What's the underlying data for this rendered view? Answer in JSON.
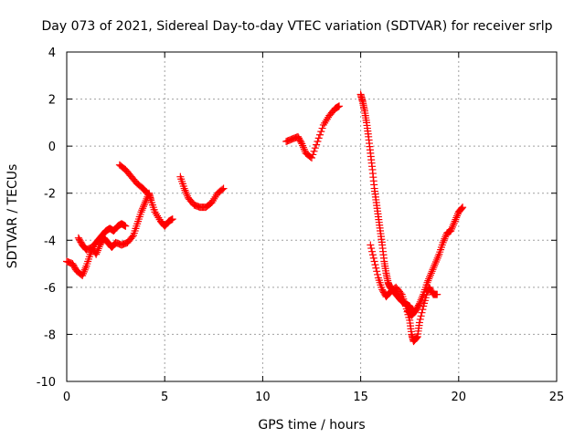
{
  "chart_data": {
    "type": "scatter",
    "title": "Day 073 of 2021, Sidereal Day-to-day VTEC variation (SDTVAR) for receiver srlp",
    "xlabel": "GPS time / hours",
    "ylabel": "SDTVAR / TECUs",
    "xlim": [
      0,
      25
    ],
    "ylim": [
      -10,
      4
    ],
    "xticks": [
      "0",
      "5",
      "10",
      "15",
      "20",
      "25"
    ],
    "yticks": [
      "-10",
      "-8",
      "-6",
      "-4",
      "-2",
      "0",
      "2",
      "4"
    ],
    "grid": true,
    "marker": "plus",
    "color": "#ff0000",
    "series": [
      {
        "points": [
          [
            0.0,
            -4.9
          ],
          [
            0.3,
            -5.0
          ],
          [
            0.5,
            -5.3
          ],
          [
            0.8,
            -5.5
          ],
          [
            1.0,
            -5.1
          ],
          [
            1.2,
            -4.6
          ],
          [
            1.4,
            -4.2
          ],
          [
            1.6,
            -4.0
          ],
          [
            1.8,
            -3.8
          ],
          [
            2.0,
            -3.6
          ],
          [
            2.2,
            -3.5
          ],
          [
            2.4,
            -3.6
          ],
          [
            2.6,
            -3.4
          ],
          [
            2.8,
            -3.3
          ],
          [
            3.0,
            -3.4
          ]
        ]
      },
      {
        "points": [
          [
            0.6,
            -3.9
          ],
          [
            0.8,
            -4.2
          ],
          [
            1.0,
            -4.4
          ],
          [
            1.3,
            -4.3
          ],
          [
            1.5,
            -4.6
          ],
          [
            1.7,
            -4.2
          ],
          [
            1.9,
            -3.9
          ],
          [
            2.1,
            -4.1
          ],
          [
            2.3,
            -4.3
          ],
          [
            2.5,
            -4.1
          ],
          [
            2.8,
            -4.2
          ],
          [
            3.1,
            -4.1
          ],
          [
            3.4,
            -3.8
          ],
          [
            3.6,
            -3.3
          ],
          [
            3.8,
            -2.8
          ],
          [
            4.0,
            -2.4
          ],
          [
            4.2,
            -2.0
          ],
          [
            4.3,
            -2.3
          ],
          [
            4.5,
            -2.8
          ],
          [
            4.8,
            -3.2
          ],
          [
            5.0,
            -3.4
          ],
          [
            5.2,
            -3.2
          ],
          [
            5.4,
            -3.1
          ]
        ]
      },
      {
        "points": [
          [
            2.7,
            -0.8
          ],
          [
            3.0,
            -1.0
          ],
          [
            3.3,
            -1.3
          ],
          [
            3.6,
            -1.6
          ],
          [
            3.9,
            -1.8
          ],
          [
            4.1,
            -2.0
          ]
        ]
      },
      {
        "points": [
          [
            5.8,
            -1.3
          ],
          [
            6.0,
            -1.8
          ],
          [
            6.2,
            -2.2
          ],
          [
            6.5,
            -2.5
          ],
          [
            6.8,
            -2.6
          ],
          [
            7.1,
            -2.6
          ],
          [
            7.4,
            -2.4
          ],
          [
            7.7,
            -2.0
          ],
          [
            8.0,
            -1.8
          ]
        ]
      },
      {
        "points": [
          [
            11.2,
            0.2
          ],
          [
            11.5,
            0.3
          ],
          [
            11.8,
            0.4
          ],
          [
            12.0,
            0.1
          ],
          [
            12.2,
            -0.3
          ],
          [
            12.5,
            -0.5
          ],
          [
            12.8,
            0.2
          ],
          [
            13.1,
            0.9
          ],
          [
            13.4,
            1.3
          ],
          [
            13.7,
            1.6
          ],
          [
            13.9,
            1.7
          ]
        ]
      },
      {
        "points": [
          [
            15.0,
            2.2
          ],
          [
            15.1,
            1.9
          ],
          [
            15.2,
            1.5
          ],
          [
            15.3,
            1.0
          ],
          [
            15.4,
            0.4
          ],
          [
            15.5,
            -0.3
          ],
          [
            15.6,
            -1.0
          ],
          [
            15.7,
            -1.8
          ],
          [
            15.8,
            -2.4
          ],
          [
            15.9,
            -3.0
          ],
          [
            16.0,
            -3.6
          ],
          [
            16.1,
            -4.2
          ],
          [
            16.2,
            -4.9
          ],
          [
            16.3,
            -5.4
          ],
          [
            16.4,
            -5.8
          ],
          [
            16.5,
            -6.0
          ],
          [
            16.7,
            -6.2
          ],
          [
            16.9,
            -6.4
          ],
          [
            17.1,
            -6.6
          ],
          [
            17.3,
            -6.7
          ],
          [
            17.5,
            -6.8
          ],
          [
            17.6,
            -7.0
          ]
        ]
      },
      {
        "points": [
          [
            15.5,
            -4.2
          ],
          [
            15.7,
            -4.9
          ],
          [
            15.9,
            -5.6
          ],
          [
            16.1,
            -6.1
          ],
          [
            16.3,
            -6.4
          ],
          [
            16.5,
            -6.2
          ],
          [
            16.8,
            -6.0
          ],
          [
            17.1,
            -6.3
          ],
          [
            17.3,
            -6.8
          ],
          [
            17.5,
            -7.4
          ],
          [
            17.6,
            -8.0
          ],
          [
            17.7,
            -8.3
          ],
          [
            17.9,
            -8.1
          ],
          [
            18.0,
            -7.5
          ],
          [
            18.2,
            -6.8
          ],
          [
            18.4,
            -6.2
          ],
          [
            18.5,
            -6.0
          ],
          [
            18.7,
            -6.3
          ],
          [
            18.9,
            -6.3
          ]
        ]
      },
      {
        "points": [
          [
            17.4,
            -7.0
          ],
          [
            17.6,
            -7.2
          ],
          [
            17.8,
            -7.0
          ],
          [
            18.0,
            -6.7
          ],
          [
            18.2,
            -6.3
          ],
          [
            18.4,
            -5.8
          ],
          [
            18.6,
            -5.4
          ],
          [
            18.8,
            -5.0
          ],
          [
            19.0,
            -4.6
          ],
          [
            19.2,
            -4.1
          ],
          [
            19.4,
            -3.7
          ],
          [
            19.6,
            -3.6
          ],
          [
            19.8,
            -3.2
          ],
          [
            20.0,
            -2.8
          ],
          [
            20.2,
            -2.6
          ]
        ]
      }
    ]
  }
}
